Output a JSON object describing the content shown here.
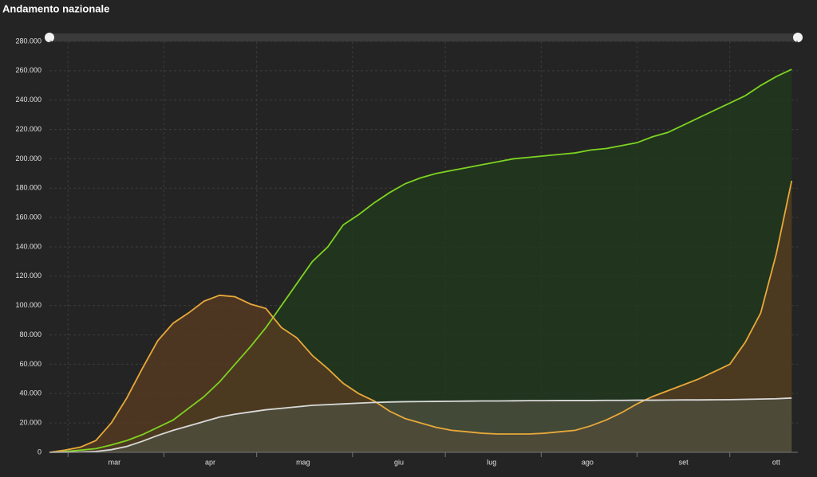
{
  "chart_data": {
    "type": "area",
    "title": "Andamento nazionale",
    "x": [
      55,
      60,
      65,
      70,
      75,
      80,
      85,
      90,
      95,
      100,
      105,
      110,
      115,
      120,
      125,
      130,
      135,
      140,
      145,
      150,
      155,
      160,
      165,
      170,
      175,
      180,
      185,
      190,
      195,
      200,
      205,
      210,
      215,
      220,
      225,
      230,
      235,
      240,
      245,
      250,
      255,
      260,
      265,
      270,
      275,
      280,
      285,
      290,
      295
    ],
    "xlim": [
      55,
      297
    ],
    "xticks": [
      {
        "value": 76,
        "label": "mar"
      },
      {
        "value": 107,
        "label": "apr"
      },
      {
        "value": 137,
        "label": "mag"
      },
      {
        "value": 168,
        "label": "giu"
      },
      {
        "value": 198,
        "label": "lug"
      },
      {
        "value": 229,
        "label": "ago"
      },
      {
        "value": 260,
        "label": "set"
      },
      {
        "value": 290,
        "label": "ott"
      }
    ],
    "xgrid": [
      61,
      92,
      122,
      153,
      183,
      214,
      245,
      275
    ],
    "ylim": [
      0,
      280000
    ],
    "yticks": [
      0,
      {
        "value": 20000,
        "label": "20.000"
      },
      {
        "value": 40000,
        "label": "40.000"
      },
      {
        "value": 60000,
        "label": "60.000"
      },
      {
        "value": 80000,
        "label": "80.000"
      },
      {
        "value": 100000,
        "label": "100.000"
      },
      {
        "value": 120000,
        "label": "120.000"
      },
      {
        "value": 140000,
        "label": "140.000"
      },
      {
        "value": 160000,
        "label": "160.000"
      },
      {
        "value": 180000,
        "label": "180.000"
      },
      {
        "value": 200000,
        "label": "200.000"
      },
      {
        "value": 220000,
        "label": "220.000"
      },
      {
        "value": 240000,
        "label": "240.000"
      },
      {
        "value": 260000,
        "label": "260.000"
      },
      {
        "value": 280000,
        "label": "280.000"
      }
    ],
    "grid": true,
    "series": [
      {
        "color": "#7ed321",
        "fill": "#1f3a1c",
        "values": [
          0,
          500,
          1500,
          2500,
          5000,
          8000,
          12000,
          17000,
          22000,
          30000,
          38000,
          48000,
          60000,
          72000,
          85000,
          100000,
          115000,
          130000,
          140000,
          155000,
          162000,
          170000,
          177000,
          183000,
          187000,
          190000,
          192000,
          194000,
          196000,
          198000,
          200000,
          201000,
          202000,
          203000,
          204000,
          206000,
          207000,
          209000,
          211000,
          215000,
          218000,
          223000,
          228000,
          233000,
          238000,
          243000,
          250000,
          256000,
          261000
        ]
      },
      {
        "color": "#e8a93a",
        "fill": "#5a3c22",
        "values": [
          0,
          1500,
          3500,
          8000,
          20000,
          37000,
          57000,
          76000,
          88000,
          95000,
          103000,
          107000,
          106000,
          101000,
          98000,
          85000,
          78000,
          66000,
          57000,
          47000,
          40000,
          35000,
          28000,
          23000,
          20000,
          17000,
          15000,
          14000,
          13000,
          12500,
          12500,
          12500,
          13000,
          14000,
          15000,
          18000,
          22000,
          27000,
          33000,
          38000,
          42000,
          46000,
          50000,
          55000,
          60000,
          75000,
          95000,
          135000,
          185000
        ]
      },
      {
        "color": "#d9d9d9",
        "fill": "#4d5040",
        "values": [
          0,
          100,
          200,
          600,
          1800,
          4000,
          7500,
          11500,
          15000,
          18000,
          21000,
          24000,
          26000,
          27500,
          29000,
          30000,
          31000,
          32000,
          32500,
          33000,
          33500,
          34000,
          34300,
          34500,
          34600,
          34700,
          34800,
          34900,
          35000,
          35000,
          35100,
          35200,
          35200,
          35300,
          35300,
          35300,
          35400,
          35400,
          35500,
          35500,
          35600,
          35700,
          35700,
          35800,
          35900,
          36100,
          36300,
          36500,
          37000
        ]
      }
    ]
  }
}
